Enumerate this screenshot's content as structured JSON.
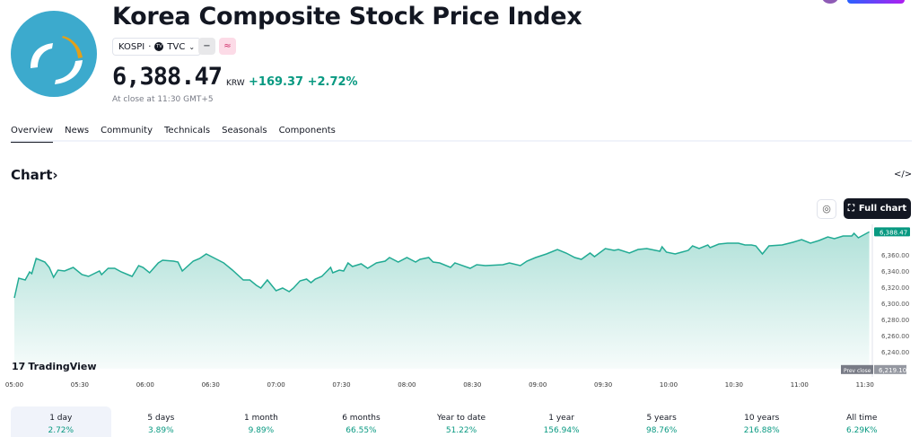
{
  "header": {
    "title": "Korea Composite Stock Price Index",
    "symbol": "KOSPI",
    "exchange": "TVC",
    "price": "6,388.47",
    "currency": "KRW",
    "change": "+169.37",
    "change_pct": "+2.72%",
    "status": "At close at 11:30 GMT+5",
    "badge1": "−",
    "badge2": "≈"
  },
  "tabs": [
    "Overview",
    "News",
    "Community",
    "Technicals",
    "Seasonals",
    "Components"
  ],
  "chart_section": {
    "title": "Chart",
    "arrow": "›",
    "embed": "</>",
    "full_chart": "Full chart",
    "brand": "TradingView",
    "prev_close_label": "Prev close",
    "accent": "#089981",
    "logo_color": "#3caacd"
  },
  "chart_data": {
    "type": "area",
    "x": [
      "05:00",
      "05:02",
      "05:05",
      "05:07",
      "05:08",
      "05:10",
      "05:14",
      "05:16",
      "05:18",
      "05:20",
      "05:23",
      "05:27",
      "05:31",
      "05:34",
      "05:39",
      "05:40",
      "05:43",
      "05:46",
      "05:49",
      "05:54",
      "05:57",
      "05:59",
      "06:02",
      "06:06",
      "06:08",
      "06:13",
      "06:15",
      "06:17",
      "06:22",
      "06:25",
      "06:28",
      "06:32",
      "06:36",
      "06:40",
      "06:45",
      "06:48",
      "06:51",
      "06:53",
      "06:56",
      "07:00",
      "07:03",
      "07:06",
      "07:08",
      "07:11",
      "07:14",
      "07:16",
      "07:18",
      "07:21",
      "07:25",
      "07:26",
      "07:29",
      "07:31",
      "07:33",
      "07:35",
      "07:39",
      "07:42",
      "07:46",
      "07:50",
      "07:52",
      "07:56",
      "08:00",
      "08:04",
      "08:06",
      "08:10",
      "08:12",
      "08:15",
      "08:20",
      "08:22",
      "08:29",
      "08:32",
      "08:36",
      "08:44",
      "08:47",
      "08:52",
      "08:55",
      "08:59",
      "09:04",
      "09:09",
      "09:13",
      "09:17",
      "09:20",
      "09:24",
      "09:26",
      "09:31",
      "09:35",
      "09:37",
      "09:42",
      "09:46",
      "09:50",
      "09:56",
      "09:57",
      "09:59",
      "10:03",
      "10:09",
      "10:11",
      "10:14",
      "10:18",
      "10:19",
      "10:23",
      "10:27",
      "10:32",
      "10:35",
      "10:38",
      "10:40",
      "10:43",
      "10:46",
      "10:52",
      "10:57",
      "11:01",
      "11:05",
      "11:09",
      "11:13",
      "11:16",
      "11:20",
      "11:24",
      "11:25",
      "11:27",
      "11:32"
    ],
    "values": [
      6306.7,
      6331.1,
      6328.9,
      6338.9,
      6336.7,
      6355.6,
      6351.1,
      6344.4,
      6332.2,
      6341.1,
      6340.0,
      6344.4,
      6335.6,
      6333.3,
      6340.0,
      6335.6,
      6343.3,
      6343.3,
      6338.9,
      6333.3,
      6346.7,
      6344.4,
      6337.8,
      6350.0,
      6353.3,
      6352.2,
      6351.1,
      6340.0,
      6352.2,
      6355.6,
      6361.1,
      6355.6,
      6350.0,
      6341.1,
      6328.9,
      6328.9,
      6322.2,
      6318.9,
      6328.9,
      6315.6,
      6318.9,
      6314.4,
      6318.9,
      6327.8,
      6330.0,
      6325.6,
      6330.0,
      6333.3,
      6344.4,
      6337.8,
      6341.1,
      6340.0,
      6350.0,
      6345.6,
      6348.9,
      6343.3,
      6350.0,
      6352.2,
      6356.7,
      6351.1,
      6356.7,
      6351.1,
      6354.4,
      6356.7,
      6351.1,
      6350.0,
      6344.4,
      6350.0,
      6343.3,
      6347.8,
      6346.7,
      6347.8,
      6350.0,
      6346.7,
      6352.2,
      6356.7,
      6361.1,
      6366.7,
      6362.2,
      6356.7,
      6354.4,
      6362.2,
      6357.8,
      6367.8,
      6365.6,
      6366.7,
      6362.2,
      6366.7,
      6367.8,
      6364.4,
      6370.0,
      6363.3,
      6361.1,
      6365.6,
      6371.1,
      6367.8,
      6372.2,
      6368.9,
      6373.3,
      6374.4,
      6374.4,
      6372.2,
      6372.2,
      6371.1,
      6361.1,
      6371.1,
      6372.2,
      6375.6,
      6378.9,
      6374.4,
      6377.8,
      6382.2,
      6380.0,
      6383.3,
      6383.3,
      6386.7,
      6381.1,
      6388.47
    ],
    "x_ticks": [
      "05:00",
      "05:30",
      "06:00",
      "06:30",
      "07:00",
      "07:30",
      "08:00",
      "08:30",
      "09:00",
      "09:30",
      "10:00",
      "10:30",
      "11:00",
      "11:30"
    ],
    "y_ticks": [
      "6,240.00",
      "6,260.00",
      "6,280.00",
      "6,300.00",
      "6,320.00",
      "6,340.00",
      "6,360.00"
    ],
    "y_tick_values": [
      6240,
      6260,
      6280,
      6300,
      6320,
      6340,
      6360
    ],
    "last_value_label": "6,388.47",
    "last_value": 6388.47,
    "prev_close": 6219.1,
    "prev_close_value_label": "6,219.10",
    "ylim": [
      6219.1,
      6395
    ],
    "grid": false,
    "line_color": "#22ab94"
  },
  "periods": [
    {
      "label": "1 day",
      "pct": "2.72%"
    },
    {
      "label": "5 days",
      "pct": "3.89%"
    },
    {
      "label": "1 month",
      "pct": "9.89%"
    },
    {
      "label": "6 months",
      "pct": "66.55%"
    },
    {
      "label": "Year to date",
      "pct": "51.22%"
    },
    {
      "label": "1 year",
      "pct": "156.94%"
    },
    {
      "label": "5 years",
      "pct": "98.76%"
    },
    {
      "label": "10 years",
      "pct": "216.88%"
    },
    {
      "label": "All time",
      "pct": "6.29K%"
    }
  ]
}
